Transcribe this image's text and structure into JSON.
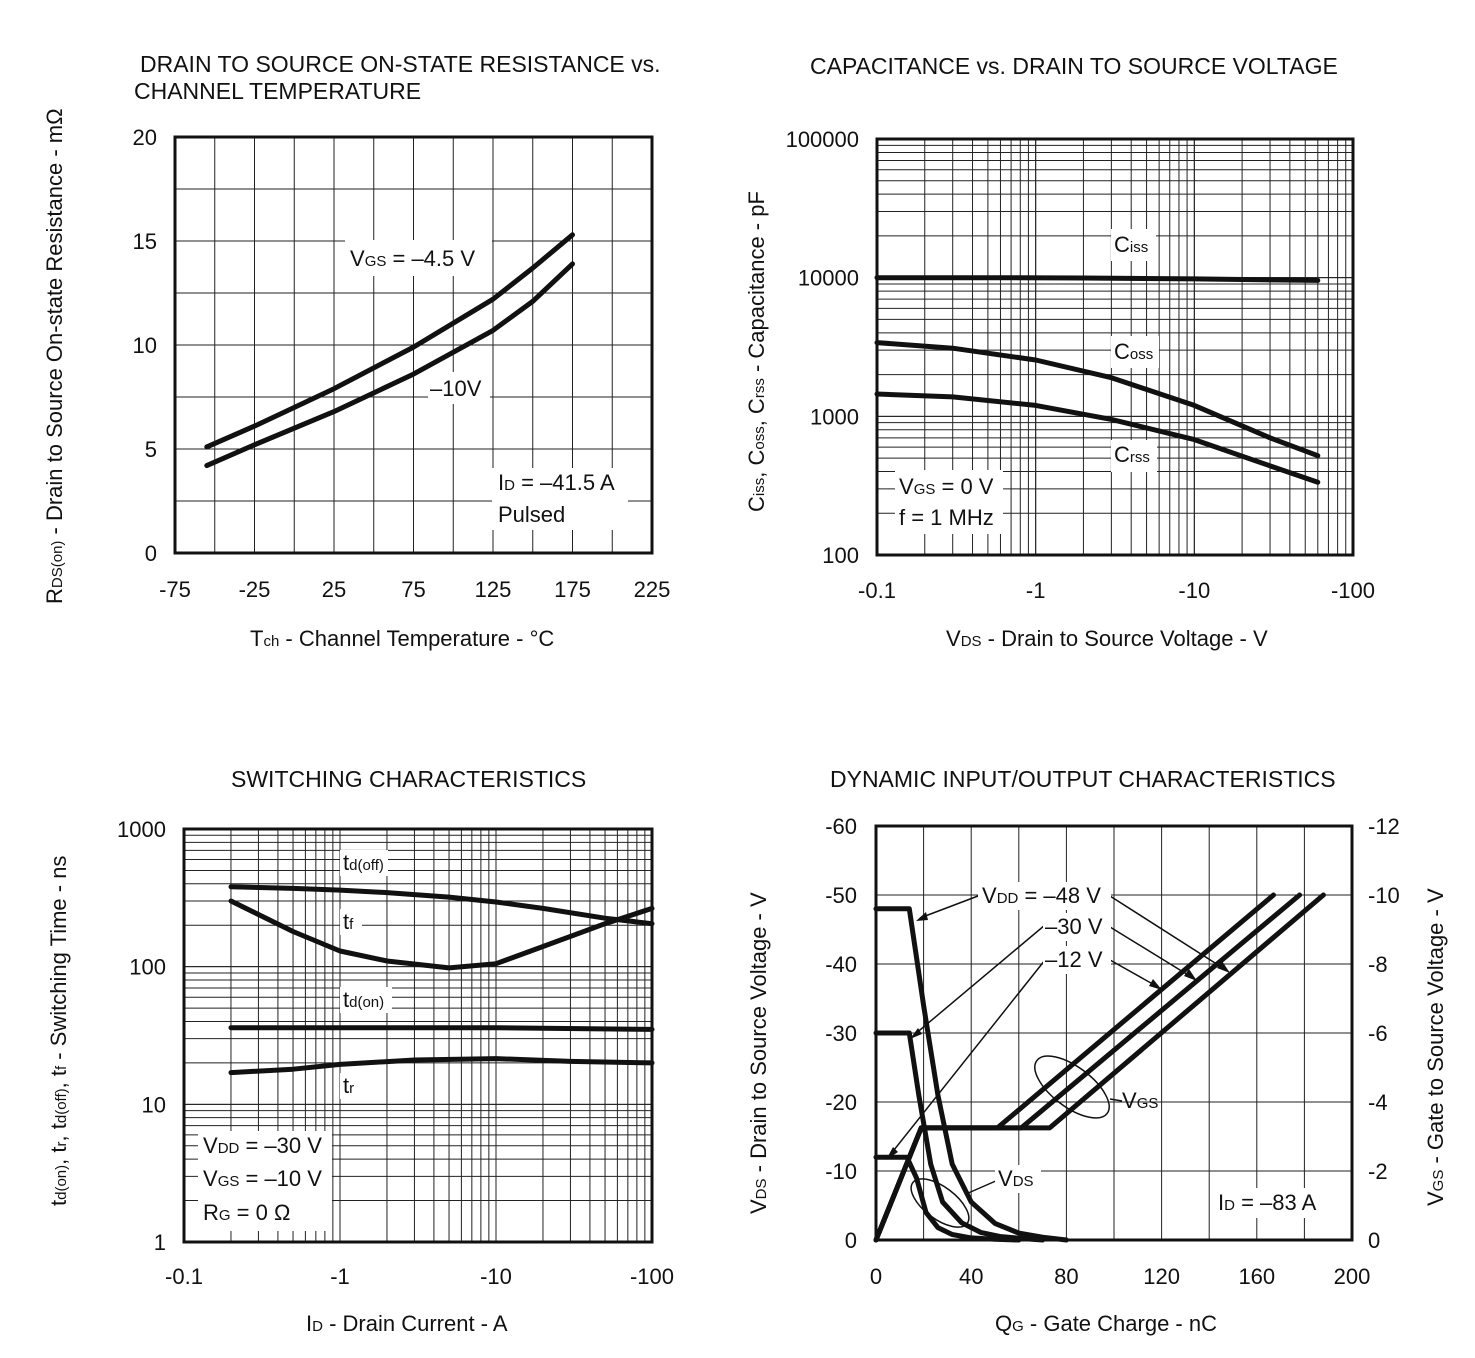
{
  "chart_data": [
    {
      "id": "rds",
      "type": "line",
      "title": [
        "DRAIN TO SOURCE ON-STATE RESISTANCE vs.",
        "CHANNEL TEMPERATURE"
      ],
      "xlabel": {
        "main": "T",
        "sub": "ch",
        "rest": " - Channel Temperature - °C"
      },
      "ylabel": {
        "main": "R",
        "sub": "DS(on)",
        "rest": " - Drain to Source On-state Resistance - mΩ"
      },
      "xlim": [
        -75,
        225
      ],
      "ylim": [
        0,
        20
      ],
      "xticks": [
        -75,
        -25,
        25,
        75,
        125,
        175,
        225
      ],
      "yticks": [
        0,
        5,
        10,
        15,
        20
      ],
      "series": [
        {
          "name": "VGS = -4.5 V",
          "x": [
            -55,
            -25,
            25,
            75,
            125,
            150,
            175
          ],
          "y": [
            5.1,
            6.1,
            7.9,
            9.9,
            12.2,
            13.7,
            15.3
          ]
        },
        {
          "name": "-10V",
          "x": [
            -55,
            -25,
            25,
            75,
            125,
            150,
            175
          ],
          "y": [
            4.2,
            5.2,
            6.8,
            8.6,
            10.7,
            12.1,
            13.9
          ]
        }
      ],
      "annotations": {
        "vgs_label": {
          "main": "V",
          "sub": "GS",
          "rest": " = –4.5 V"
        },
        "v10_label": "–10V",
        "id_label": {
          "main": "I",
          "sub": "D",
          "rest": " = –41.5 A"
        },
        "pulsed": "Pulsed"
      }
    },
    {
      "id": "cap",
      "type": "line",
      "title": [
        "CAPACITANCE vs. DRAIN TO SOURCE VOLTAGE"
      ],
      "xlabel": {
        "main": "V",
        "sub": "DS",
        "rest": " - Drain to Source Voltage - V"
      },
      "ylabel": "C_iss, C_oss, C_rss - Capacitance - pF",
      "ylabel_parts": {
        "c": "C",
        "iss": "iss",
        "oss": "oss",
        "rss": "rss",
        "sep": ", ",
        "rest": " - Capacitance - pF"
      },
      "xscale": "log",
      "yscale": "log",
      "xlim": [
        0.1,
        100
      ],
      "ylim": [
        100,
        100000
      ],
      "xticks": [
        "-0.1",
        "-1",
        "-10",
        "-100"
      ],
      "yticks": [
        "100",
        "1000",
        "10000",
        "100000"
      ],
      "series": [
        {
          "name": "Ciss",
          "x": [
            0.1,
            0.5,
            2,
            10,
            60
          ],
          "y": [
            10000,
            9990,
            9950,
            9800,
            9550
          ]
        },
        {
          "name": "Coss",
          "x": [
            0.1,
            0.3,
            1,
            3,
            10,
            30,
            60
          ],
          "y": [
            3400,
            3100,
            2550,
            1900,
            1200,
            700,
            520
          ]
        },
        {
          "name": "Crss",
          "x": [
            0.1,
            0.3,
            1,
            3,
            10,
            30,
            60
          ],
          "y": [
            1450,
            1380,
            1200,
            950,
            680,
            440,
            335
          ]
        }
      ],
      "annotations": {
        "ciss": {
          "main": "C",
          "sub": "iss"
        },
        "coss": {
          "main": "C",
          "sub": "oss"
        },
        "crss": {
          "main": "C",
          "sub": "rss"
        },
        "vgs": {
          "main": "V",
          "sub": "GS",
          "rest": " = 0 V"
        },
        "freq": "f = 1 MHz"
      }
    },
    {
      "id": "sw",
      "type": "line",
      "title": [
        "SWITCHING CHARACTERISTICS"
      ],
      "xlabel": {
        "main": "I",
        "sub": "D",
        "rest": " - Drain Current - A"
      },
      "ylabel": "t_d(on), t_r, t_d(off), t_f - Switching Time - ns",
      "ylabel_parts": {
        "t": "t",
        "don": "d(on)",
        "r": "r",
        "doff": "d(off)",
        "f": "f",
        "sep": ", ",
        "rest": " - Switching Time - ns"
      },
      "xscale": "log",
      "yscale": "log",
      "xlim": [
        0.1,
        100
      ],
      "ylim": [
        1,
        1000
      ],
      "xticks": [
        "-0.1",
        "-1",
        "-10",
        "-100"
      ],
      "yticks": [
        "1",
        "10",
        "100",
        "1000"
      ],
      "series": [
        {
          "name": "td(off)",
          "x": [
            0.2,
            0.5,
            1,
            2,
            5,
            10,
            20,
            50,
            100
          ],
          "y": [
            380,
            370,
            360,
            345,
            320,
            295,
            265,
            225,
            205
          ]
        },
        {
          "name": "tf",
          "x": [
            0.2,
            0.5,
            1,
            2,
            5,
            10,
            20,
            50,
            100
          ],
          "y": [
            300,
            180,
            130,
            110,
            98,
            105,
            140,
            205,
            265
          ]
        },
        {
          "name": "td(on)",
          "x": [
            0.2,
            1,
            10,
            100
          ],
          "y": [
            36,
            36,
            36,
            35
          ]
        },
        {
          "name": "tr",
          "x": [
            0.2,
            0.5,
            1,
            3,
            10,
            30,
            100
          ],
          "y": [
            17,
            18,
            19.5,
            21,
            21.5,
            20.5,
            20
          ]
        }
      ],
      "annotations": {
        "tdoff": {
          "main": "t",
          "sub": "d(off)"
        },
        "tf": {
          "main": "t",
          "sub": "f"
        },
        "tdon": {
          "main": "t",
          "sub": "d(on)"
        },
        "tr": {
          "main": "t",
          "sub": "r"
        },
        "vdd": {
          "main": "V",
          "sub": "DD",
          "rest": " = –30 V"
        },
        "vgs": {
          "main": "V",
          "sub": "GS",
          "rest": " = –10 V"
        },
        "rg": {
          "main": "R",
          "sub": "G",
          "rest": " = 0 Ω"
        }
      }
    },
    {
      "id": "dyn",
      "type": "line",
      "title": [
        "DYNAMIC INPUT/OUTPUT CHARACTERISTICS"
      ],
      "xlabel": {
        "main": "Q",
        "sub": "G",
        "rest": " - Gate Charge - nC"
      },
      "ylabel": {
        "main": "V",
        "sub": "DS",
        "rest": " - Drain to Source Voltage - V"
      },
      "y2label": {
        "main": "V",
        "sub": "GS",
        "rest": " - Gate to Source Voltage - V"
      },
      "xlim": [
        0,
        200
      ],
      "ylim": [
        0,
        -60
      ],
      "y2lim": [
        0,
        -12
      ],
      "xticks": [
        0,
        40,
        80,
        120,
        160,
        200
      ],
      "yticks": [
        0,
        -10,
        -20,
        -30,
        -40,
        -50,
        -60
      ],
      "y2ticks": [
        0,
        -2,
        -4,
        -6,
        -8,
        -10,
        -12
      ],
      "series": [
        {
          "name": "VDS VDD=-48V",
          "axis": "left",
          "x": [
            0,
            14,
            20,
            26,
            32,
            40,
            50,
            60,
            70,
            80
          ],
          "y": [
            -48,
            -48,
            -34,
            -21,
            -11,
            -5.5,
            -2.4,
            -1,
            -0.4,
            0
          ]
        },
        {
          "name": "VDS VDD=-30V",
          "axis": "left",
          "x": [
            0,
            14,
            18,
            23,
            28,
            36,
            44,
            52,
            62,
            70
          ],
          "y": [
            -30,
            -30,
            -21,
            -11,
            -5.5,
            -2.5,
            -1.1,
            -0.5,
            -0.2,
            0
          ]
        },
        {
          "name": "VDS VDD=-12V",
          "axis": "left",
          "x": [
            0,
            13,
            17,
            21,
            26,
            32,
            40,
            50,
            60
          ],
          "y": [
            -12,
            -12,
            -9,
            -4,
            -1.8,
            -0.8,
            -0.3,
            -0.1,
            0
          ]
        },
        {
          "name": "VGS VDD=-12V",
          "axis": "right",
          "x": [
            0,
            19,
            51,
            167
          ],
          "y": [
            0,
            -3.25,
            -3.25,
            -10
          ]
        },
        {
          "name": "VGS VDD=-30V",
          "axis": "right",
          "x": [
            0,
            19,
            61,
            178
          ],
          "y": [
            0,
            -3.25,
            -3.25,
            -10
          ]
        },
        {
          "name": "VGS VDD=-48V",
          "axis": "right",
          "x": [
            0,
            19,
            73,
            188
          ],
          "y": [
            0,
            -3.25,
            -3.25,
            -10
          ]
        }
      ],
      "annotations": {
        "vdd48": {
          "main": "V",
          "sub": "DD",
          "rest": " = –48 V"
        },
        "vdd30": "–30 V",
        "vdd12": "–12 V",
        "vgs": {
          "main": "V",
          "sub": "GS"
        },
        "vds": {
          "main": "V",
          "sub": "DS"
        },
        "id": {
          "main": "I",
          "sub": "D",
          "rest": " = –83 A"
        }
      }
    }
  ]
}
